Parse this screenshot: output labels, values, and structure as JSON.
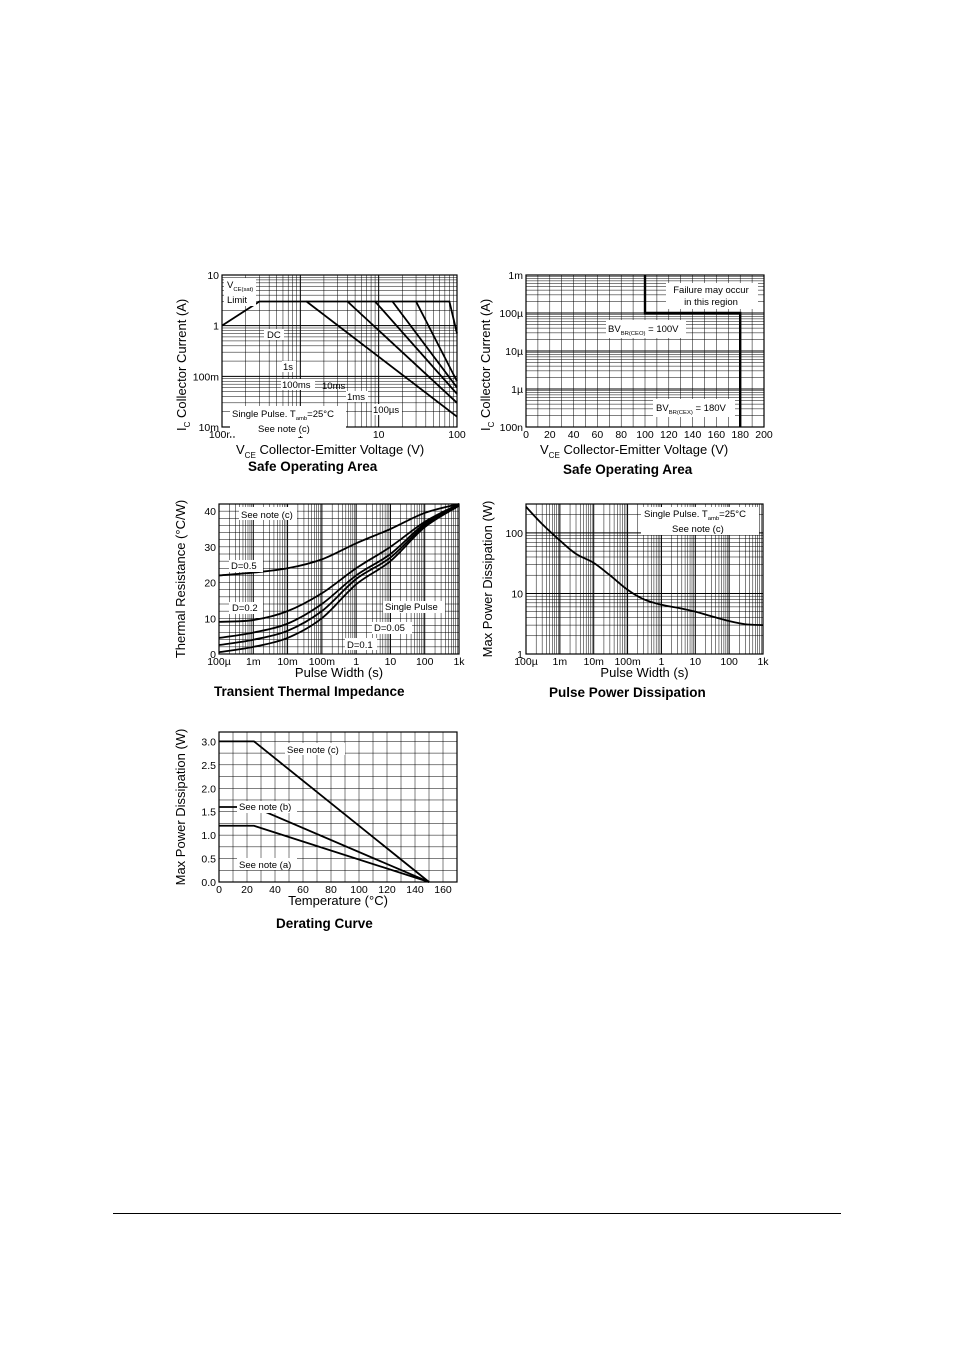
{
  "chart_data": [
    {
      "id": "soa_log",
      "type": "line",
      "title": "Safe Operating Area",
      "xlabel_sym": "V",
      "xlabel_sub": "CE",
      "xlabel_text": "Collector-Emitter Voltage (V)",
      "ylabel_sym": "I",
      "ylabel_sub": "C",
      "ylabel_text": "Collector Current (A)",
      "xscale": "log",
      "yscale": "log",
      "grid": true,
      "xlim": [
        0.1,
        100
      ],
      "ylim": [
        0.01,
        10
      ],
      "xticks": [
        {
          "v": 0.1,
          "l": "100m"
        },
        {
          "v": 1,
          "l": "1"
        },
        {
          "v": 10,
          "l": "10"
        },
        {
          "v": 100,
          "l": "100"
        }
      ],
      "yticks": [
        {
          "v": 0.01,
          "l": "10m"
        },
        {
          "v": 0.1,
          "l": "100m"
        },
        {
          "v": 1,
          "l": "1"
        },
        {
          "v": 10,
          "l": "10"
        }
      ],
      "series": [
        {
          "label": "VCE(sat) Limit",
          "points": [
            [
              0.1,
              1.0
            ],
            [
              0.3,
              3.0
            ]
          ]
        },
        {
          "label": "DC",
          "points": [
            [
              0.3,
              3.0
            ],
            [
              1.2,
              3.0
            ],
            [
              100,
              0.016
            ]
          ]
        },
        {
          "label": "1s",
          "points": [
            [
              1.2,
              3.0
            ],
            [
              4.0,
              3.0
            ],
            [
              100,
              0.03
            ]
          ]
        },
        {
          "label": "100ms",
          "points": [
            [
              4.0,
              3.0
            ],
            [
              9.0,
              3.0
            ],
            [
              100,
              0.045
            ]
          ]
        },
        {
          "label": "10ms",
          "points": [
            [
              9.0,
              3.0
            ],
            [
              15.0,
              3.0
            ],
            [
              100,
              0.06
            ]
          ]
        },
        {
          "label": "1ms",
          "points": [
            [
              15.0,
              3.0
            ],
            [
              30.0,
              3.0
            ],
            [
              100,
              0.08
            ]
          ]
        },
        {
          "label": "100µs",
          "points": [
            [
              30.0,
              3.0
            ],
            [
              80.0,
              3.0
            ],
            [
              100,
              0.7
            ]
          ]
        }
      ],
      "annotations": {
        "vcesat_1": "V",
        "vcesat_sub": "CE(sat)",
        "vcesat_2": "Limit",
        "dc": "DC",
        "s1": "1s",
        "ms100": "100ms",
        "ms10": "10ms",
        "ms1": "1ms",
        "us100": "100µs",
        "pulse_1": "Single Pulse. T",
        "pulse_sub": "amb",
        "pulse_2": "=25°C",
        "note": "See note (c)"
      }
    },
    {
      "id": "soa_lin",
      "type": "line",
      "title": "Safe Operating Area",
      "xlabel_sym": "V",
      "xlabel_sub": "CE",
      "xlabel_text": "Collector-Emitter Voltage (V)",
      "ylabel_sym": "I",
      "ylabel_sub": "C",
      "ylabel_text": "Collector Current (A)",
      "xscale": "linear",
      "yscale": "log",
      "grid": true,
      "xlim": [
        0,
        200
      ],
      "ylim": [
        1e-07,
        0.001
      ],
      "xticks": [
        {
          "v": 0,
          "l": "0"
        },
        {
          "v": 20,
          "l": "20"
        },
        {
          "v": 40,
          "l": "40"
        },
        {
          "v": 60,
          "l": "60"
        },
        {
          "v": 80,
          "l": "80"
        },
        {
          "v": 100,
          "l": "100"
        },
        {
          "v": 120,
          "l": "120"
        },
        {
          "v": 140,
          "l": "140"
        },
        {
          "v": 160,
          "l": "160"
        },
        {
          "v": 180,
          "l": "180"
        },
        {
          "v": 200,
          "l": "200"
        }
      ],
      "yticks": [
        {
          "v": 1e-07,
          "l": "100n"
        },
        {
          "v": 1e-06,
          "l": "1µ"
        },
        {
          "v": 1e-05,
          "l": "10µ"
        },
        {
          "v": 0.0001,
          "l": "100µ"
        },
        {
          "v": 0.001,
          "l": "1m"
        }
      ],
      "series": [
        {
          "label": "boundary",
          "points": [
            [
              100,
              0.001
            ],
            [
              100,
              0.0001
            ],
            [
              180,
              0.0001
            ],
            [
              180,
              1e-07
            ]
          ]
        }
      ],
      "annotations": {
        "failure_1": "Failure may occur",
        "failure_2": "in this region",
        "bvcbo_1": "BV",
        "bvcbo_sub": "BR(CEO)",
        "bvcbo_2": "= 100V",
        "bvcex_1": "BV",
        "bvcex_sub": "BR(CEX)",
        "bvcex_2": "= 180V"
      }
    },
    {
      "id": "thermal",
      "type": "line",
      "title": "Transient Thermal Impedance",
      "xlabel_text": "Pulse Width (s)",
      "ylabel_text": "Thermal Resistance (°C/W)",
      "xscale": "log",
      "yscale": "linear",
      "grid": true,
      "xlim": [
        0.0001,
        1000
      ],
      "ylim": [
        0,
        42
      ],
      "xticks": [
        {
          "v": 0.0001,
          "l": "100µ"
        },
        {
          "v": 0.001,
          "l": "1m"
        },
        {
          "v": 0.01,
          "l": "10m"
        },
        {
          "v": 0.1,
          "l": "100m"
        },
        {
          "v": 1,
          "l": "1"
        },
        {
          "v": 10,
          "l": "10"
        },
        {
          "v": 100,
          "l": "100"
        },
        {
          "v": 1000,
          "l": "1k"
        }
      ],
      "yticks": [
        {
          "v": 0,
          "l": "0"
        },
        {
          "v": 10,
          "l": "10"
        },
        {
          "v": 20,
          "l": "20"
        },
        {
          "v": 30,
          "l": "30"
        },
        {
          "v": 40,
          "l": "40"
        }
      ],
      "series": [
        {
          "label": "D=0.5",
          "points": [
            [
              0.0001,
              22
            ],
            [
              0.001,
              22.8
            ],
            [
              0.01,
              24
            ],
            [
              0.1,
              26.5
            ],
            [
              1,
              31
            ],
            [
              10,
              35
            ],
            [
              100,
              39.5
            ],
            [
              1000,
              42
            ]
          ]
        },
        {
          "label": "D=0.2",
          "points": [
            [
              0.0001,
              9
            ],
            [
              0.001,
              9.5
            ],
            [
              0.01,
              12
            ],
            [
              0.1,
              17
            ],
            [
              1,
              24
            ],
            [
              10,
              30
            ],
            [
              100,
              37
            ],
            [
              1000,
              42
            ]
          ]
        },
        {
          "label": "D=0.1",
          "points": [
            [
              0.0001,
              4.5
            ],
            [
              0.001,
              6
            ],
            [
              0.01,
              8.5
            ],
            [
              0.1,
              14
            ],
            [
              1,
              22
            ],
            [
              10,
              28
            ],
            [
              100,
              36.5
            ],
            [
              1000,
              42
            ]
          ]
        },
        {
          "label": "D=0.05",
          "points": [
            [
              0.0001,
              2.5
            ],
            [
              0.001,
              4
            ],
            [
              0.01,
              6.5
            ],
            [
              0.1,
              12
            ],
            [
              1,
              21
            ],
            [
              10,
              27
            ],
            [
              100,
              36
            ],
            [
              1000,
              41.8
            ]
          ]
        },
        {
          "label": "Single Pulse",
          "points": [
            [
              0.0001,
              0.5
            ],
            [
              0.001,
              2
            ],
            [
              0.01,
              4.5
            ],
            [
              0.1,
              10
            ],
            [
              1,
              19.5
            ],
            [
              10,
              26
            ],
            [
              100,
              35.5
            ],
            [
              1000,
              41.5
            ]
          ]
        }
      ],
      "annotations": {
        "note": "See note (c)",
        "d05": "D=0.5",
        "d02": "D=0.2",
        "single": "Single Pulse",
        "d005": "D=0.05",
        "d01": "D=0.1"
      }
    },
    {
      "id": "pulse_power",
      "type": "line",
      "title": "Pulse Power Dissipation",
      "xlabel_text": "Pulse Width (s)",
      "ylabel_text": "Max Power Dissipation (W)",
      "xscale": "log",
      "yscale": "log",
      "grid": true,
      "xlim": [
        0.0001,
        1000
      ],
      "ylim": [
        1,
        300
      ],
      "xticks": [
        {
          "v": 0.0001,
          "l": "100µ"
        },
        {
          "v": 0.001,
          "l": "1m"
        },
        {
          "v": 0.01,
          "l": "10m"
        },
        {
          "v": 0.1,
          "l": "100m"
        },
        {
          "v": 1,
          "l": "1"
        },
        {
          "v": 10,
          "l": "10"
        },
        {
          "v": 100,
          "l": "100"
        },
        {
          "v": 1000,
          "l": "1k"
        }
      ],
      "yticks": [
        {
          "v": 1,
          "l": "1"
        },
        {
          "v": 10,
          "l": "10"
        },
        {
          "v": 100,
          "l": "100"
        }
      ],
      "series": [
        {
          "label": "Pulse power",
          "points": [
            [
              0.0001,
              270
            ],
            [
              0.0003,
              140
            ],
            [
              0.001,
              75
            ],
            [
              0.003,
              45
            ],
            [
              0.01,
              32
            ],
            [
              0.03,
              20
            ],
            [
              0.1,
              11.5
            ],
            [
              0.3,
              8
            ],
            [
              1,
              6.5
            ],
            [
              3,
              5.8
            ],
            [
              10,
              5
            ],
            [
              30,
              4.2
            ],
            [
              100,
              3.5
            ],
            [
              300,
              3.1
            ],
            [
              1000,
              3
            ]
          ]
        }
      ],
      "annotations": {
        "pulse_1": "Single Pulse. T",
        "pulse_sub": "amb",
        "pulse_2": "=25°C",
        "note": "See note (c)"
      }
    },
    {
      "id": "derating",
      "type": "line",
      "title": "Derating Curve",
      "xlabel_text": "Temperature (°C)",
      "ylabel_text": "Max Power Dissipation (W)",
      "xscale": "linear",
      "yscale": "linear",
      "grid": true,
      "xlim": [
        0,
        170
      ],
      "ylim": [
        0,
        3.2
      ],
      "xticks": [
        {
          "v": 0,
          "l": "0"
        },
        {
          "v": 20,
          "l": "20"
        },
        {
          "v": 40,
          "l": "40"
        },
        {
          "v": 60,
          "l": "60"
        },
        {
          "v": 80,
          "l": "80"
        },
        {
          "v": 100,
          "l": "100"
        },
        {
          "v": 120,
          "l": "120"
        },
        {
          "v": 140,
          "l": "140"
        },
        {
          "v": 160,
          "l": "160"
        }
      ],
      "yticks": [
        {
          "v": 0,
          "l": "0.0"
        },
        {
          "v": 0.5,
          "l": "0.5"
        },
        {
          "v": 1,
          "l": "1.0"
        },
        {
          "v": 1.5,
          "l": "1.5"
        },
        {
          "v": 2,
          "l": "2.0"
        },
        {
          "v": 2.5,
          "l": "2.5"
        },
        {
          "v": 3,
          "l": "3.0"
        }
      ],
      "series": [
        {
          "label": "See note (c)",
          "points": [
            [
              0,
              3.0
            ],
            [
              25,
              3.0
            ],
            [
              150,
              0
            ]
          ]
        },
        {
          "label": "See note (b)",
          "points": [
            [
              0,
              1.6
            ],
            [
              25,
              1.6
            ],
            [
              150,
              0
            ]
          ]
        },
        {
          "label": "See note (a)",
          "points": [
            [
              0,
              1.2
            ],
            [
              25,
              1.2
            ],
            [
              150,
              0
            ]
          ]
        }
      ],
      "annotations": {
        "note_c": "See note (c)",
        "note_b": "See note (b)",
        "note_a": "See note (a)"
      }
    }
  ]
}
